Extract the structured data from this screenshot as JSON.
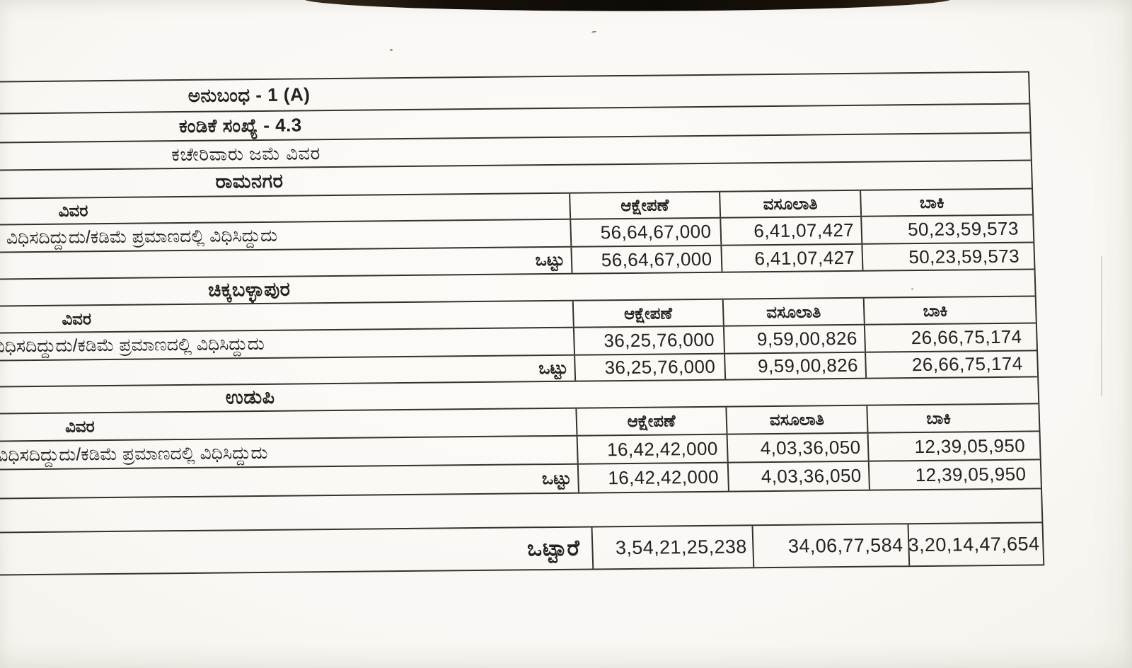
{
  "document": {
    "annexure_title": "ಅನುಬಂಧ - 1 (A)",
    "paragraph_number": "ಕಂಡಿಕೆ ಸಂಖ್ಯೆ - 4.3",
    "subject": "ಕಚೇರಿವಾರು ಜಮೆ ವಿವರ",
    "columns": {
      "details": "ವಿವರ",
      "objection": "ಆಕ್ಷೇಪಣೆ",
      "recovery": "ವಸೂಲಾತಿ",
      "balance": "ಬಾಕಿ"
    },
    "row_label": "ವಿಧಿಸದಿದ್ದುದು/ಕಡಿಮೆ ಪ್ರಮಾಣದಲ್ಲಿ ವಿಧಿಸಿದ್ದುದು",
    "total_label": "ಒಟ್ಟು",
    "sections": [
      {
        "name": "ರಾಮನಗರ",
        "objection": "56,64,67,000",
        "recovery": "6,41,07,427",
        "balance": "50,23,59,573",
        "total": {
          "objection": "56,64,67,000",
          "recovery": "6,41,07,427",
          "balance": "50,23,59,573"
        }
      },
      {
        "name": "ಚಿಕ್ಕಬಳ್ಳಾಪುರ",
        "objection": "36,25,76,000",
        "recovery": "9,59,00,826",
        "balance": "26,66,75,174",
        "total": {
          "objection": "36,25,76,000",
          "recovery": "9,59,00,826",
          "balance": "26,66,75,174"
        }
      },
      {
        "name": "ಉಡುಪಿ",
        "objection": "16,42,42,000",
        "recovery": "4,03,36,050",
        "balance": "12,39,05,950",
        "total": {
          "objection": "16,42,42,000",
          "recovery": "4,03,36,050",
          "balance": "12,39,05,950"
        }
      }
    ],
    "grand_total": {
      "label": "ಒಟ್ಟಾರೆ",
      "objection": "3,54,21,25,238",
      "recovery": "34,06,77,584",
      "balance": "3,20,14,47,654"
    },
    "colors": {
      "ink": "#23221e",
      "rule_lines": "#34322c",
      "paper": "#faf8f4",
      "photo_edge": "#150f09"
    }
  }
}
